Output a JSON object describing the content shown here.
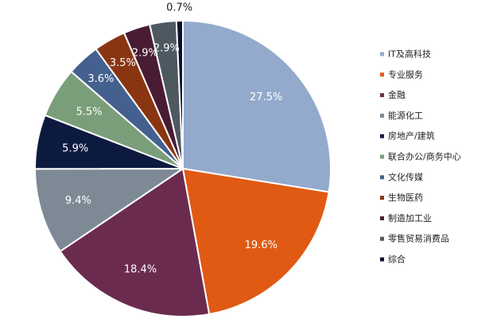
{
  "chart_data": {
    "type": "pie",
    "title": "",
    "legend_position": "right",
    "slices": [
      {
        "name": "IT及高科技",
        "value": 27.5,
        "label": "27.5%",
        "color": "#94aacd"
      },
      {
        "name": "专业服务",
        "value": 19.6,
        "label": "19.6%",
        "color": "#e05a14"
      },
      {
        "name": "金融",
        "value": 18.4,
        "label": "18.4%",
        "color": "#6b2b4f"
      },
      {
        "name": "能源化工",
        "value": 9.4,
        "label": "9.4%",
        "color": "#7d8a96"
      },
      {
        "name": "房地产/建筑",
        "value": 5.9,
        "label": "5.9%",
        "color": "#0d1a40"
      },
      {
        "name": "联合办公/商务中心",
        "value": 5.5,
        "label": "5.5%",
        "color": "#7a9e7a"
      },
      {
        "name": "文化传媒",
        "value": 3.6,
        "label": "3.6%",
        "color": "#44608f"
      },
      {
        "name": "生物医药",
        "value": 3.5,
        "label": "3.5%",
        "color": "#8a3512"
      },
      {
        "name": "制造加工业",
        "value": 2.9,
        "label": "2.9%",
        "color": "#4a1c34"
      },
      {
        "name": "零售贸易消费品",
        "value": 2.9,
        "label": "2.9%",
        "color": "#4e5860"
      },
      {
        "name": "综合",
        "value": 0.7,
        "label": "0.7%",
        "color": "#0a1230"
      }
    ]
  }
}
